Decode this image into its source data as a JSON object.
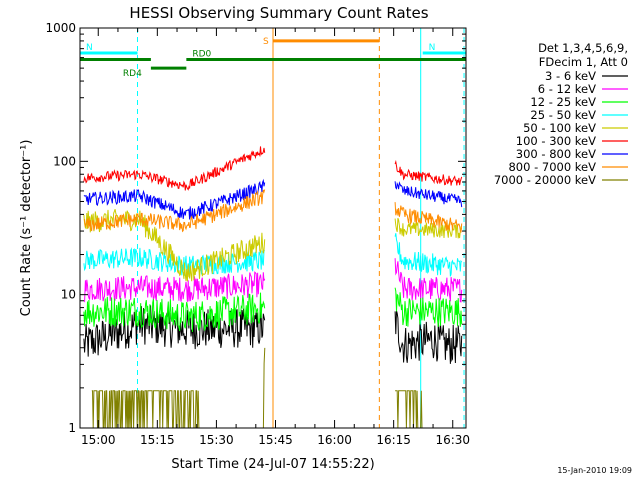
{
  "chart_data": {
    "type": "line",
    "title": "HESSI Observing Summary Count Rates",
    "xlabel": "Start Time (24-Jul-07 14:55:22)",
    "ylabel": "Count Rate (s⁻¹ detector⁻¹)",
    "yscale": "log",
    "ylim": [
      1,
      1000
    ],
    "xlim_minutes_after_start": [
      0,
      98
    ],
    "x_ticks": [
      "15:00",
      "15:15",
      "15:30",
      "15:45",
      "16:00",
      "16:15",
      "16:30"
    ],
    "y_ticks": [
      "1",
      "10",
      "100",
      "1000"
    ],
    "grid": false,
    "legend_position": "right",
    "legend_header": [
      "Det 1,3,4,5,6,9,",
      "FDecim 1, Att 0"
    ],
    "footer_stamp": "15-Jan-2010 19:09",
    "series": [
      {
        "name": "3 - 6 keV",
        "color": "#000000",
        "segments": [
          {
            "t": [
              1,
              15,
              15,
              27,
              27,
              47
            ],
            "v": [
              4.2,
              6.0,
              6.0,
              5.5,
              5.5,
              5.6
            ]
          },
          {
            "t": [
              80,
              82,
              90,
              92,
              97
            ],
            "v": [
              6.5,
              4.2,
              4.6,
              4.2,
              4.2
            ]
          }
        ]
      },
      {
        "name": "6 - 12 keV",
        "color": "#ff00ff",
        "segments": [
          {
            "t": [
              1,
              15,
              15,
              27,
              27,
              47
            ],
            "v": [
              11,
              11.3,
              11.3,
              11,
              11,
              12
            ]
          },
          {
            "t": [
              80,
              82,
              97
            ],
            "v": [
              17,
              11,
              11
            ]
          }
        ]
      },
      {
        "name": "12 - 25 keV",
        "color": "#00ff00",
        "segments": [
          {
            "t": [
              1,
              15,
              15,
              27,
              27,
              47
            ],
            "v": [
              7.5,
              7.6,
              7.6,
              6.8,
              6.8,
              8
            ]
          },
          {
            "t": [
              80,
              82,
              97
            ],
            "v": [
              10,
              7.5,
              7.5
            ]
          }
        ]
      },
      {
        "name": "25 - 50 keV",
        "color": "#00ffff",
        "segments": [
          {
            "t": [
              1,
              15,
              15,
              27,
              27,
              47
            ],
            "v": [
              18,
              19,
              19,
              16.5,
              16.5,
              18
            ]
          },
          {
            "t": [
              80,
              82,
              97
            ],
            "v": [
              25,
              18,
              16
            ]
          }
        ]
      },
      {
        "name": "50 - 100 keV",
        "color": "#cccc00",
        "segments": [
          {
            "t": [
              1,
              15,
              15,
              27,
              27,
              47
            ],
            "v": [
              35,
              37,
              37,
              14.5,
              14.5,
              25
            ]
          },
          {
            "t": [
              80,
              82,
              97
            ],
            "v": [
              35,
              31,
              30
            ]
          }
        ]
      },
      {
        "name": "100 - 300 keV",
        "color": "#ff0000",
        "segments": [
          {
            "t": [
              1,
              15,
              15,
              27,
              27,
              47
            ],
            "v": [
              75,
              80,
              80,
              65,
              65,
              125
            ]
          },
          {
            "t": [
              80,
              82,
              97
            ],
            "v": [
              95,
              80,
              70
            ]
          }
        ]
      },
      {
        "name": "300 - 800 keV",
        "color": "#0000ff",
        "segments": [
          {
            "t": [
              1,
              15,
              15,
              27,
              27,
              47
            ],
            "v": [
              52,
              55,
              55,
              40,
              40,
              65
            ]
          },
          {
            "t": [
              80,
              82,
              97
            ],
            "v": [
              70,
              60,
              50
            ]
          }
        ]
      },
      {
        "name": "800 - 7000 keV",
        "color": "#ff8c00",
        "segments": [
          {
            "t": [
              1,
              15,
              15,
              27,
              27,
              47
            ],
            "v": [
              33,
              37,
              37,
              33,
              33,
              55
            ]
          },
          {
            "t": [
              80,
              82,
              97
            ],
            "v": [
              45,
              40,
              32
            ]
          }
        ]
      },
      {
        "name": "7000 - 20000 keV",
        "color": "#808000",
        "segments": [
          {
            "t": [
              3,
              30,
              30,
              46,
              47
            ],
            "v": [
              1.9,
              1.9,
              1,
              1,
              4.5
            ]
          },
          {
            "t": [
              80,
              87
            ],
            "v": [
              1.9,
              1.9
            ]
          }
        ]
      }
    ],
    "markers": [
      {
        "label": "N",
        "color": "#00ffff",
        "level": 650,
        "start": 0,
        "end": 14.6
      },
      {
        "label": "N",
        "color": "#00ffff",
        "level": 650,
        "start": 87,
        "end": 98
      },
      {
        "label": "S",
        "color": "#ff8c00",
        "level": 800,
        "start": 49,
        "end": 76
      },
      {
        "label": "RD0",
        "color": "#008000",
        "level": 580,
        "start": 27,
        "end": 98
      },
      {
        "label": "RD4",
        "color": "#008000",
        "level": 500,
        "start": 18,
        "end": 27
      },
      {
        "label": "",
        "color": "#008000",
        "level": 580,
        "start": 0,
        "end": 18
      }
    ],
    "vlines": [
      {
        "t": 0,
        "color": "#00ffff",
        "style": "solid"
      },
      {
        "t": 14.6,
        "color": "#00ffff",
        "style": "dashed"
      },
      {
        "t": 49,
        "color": "#ff8c00",
        "style": "solid"
      },
      {
        "t": 76,
        "color": "#ff8c00",
        "style": "dashed"
      },
      {
        "t": 86.5,
        "color": "#00ffff",
        "style": "solid"
      },
      {
        "t": 97.5,
        "color": "#00ffff",
        "style": "dashed"
      }
    ]
  }
}
